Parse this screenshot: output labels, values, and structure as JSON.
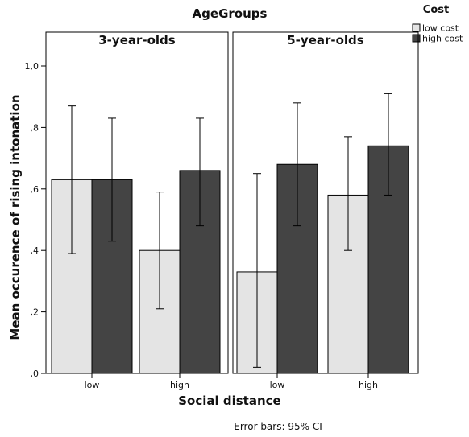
{
  "chart_data": {
    "type": "bar",
    "title": "AgeGroups",
    "panels": [
      {
        "name": "3-year-olds",
        "categories": [
          "low",
          "high"
        ],
        "series": [
          {
            "name": "low cost",
            "values": [
              0.63,
              0.4
            ],
            "ci_low": [
              0.39,
              0.21
            ],
            "ci_high": [
              0.87,
              0.59
            ]
          },
          {
            "name": "high cost",
            "values": [
              0.63,
              0.66
            ],
            "ci_low": [
              0.43,
              0.48
            ],
            "ci_high": [
              0.83,
              0.83
            ]
          }
        ]
      },
      {
        "name": "5-year-olds",
        "categories": [
          "low",
          "high"
        ],
        "series": [
          {
            "name": "low cost",
            "values": [
              0.33,
              0.58
            ],
            "ci_low": [
              0.02,
              0.4
            ],
            "ci_high": [
              0.65,
              0.77
            ]
          },
          {
            "name": "high cost",
            "values": [
              0.68,
              0.74
            ],
            "ci_low": [
              0.48,
              0.58
            ],
            "ci_high": [
              0.88,
              0.91
            ]
          }
        ]
      }
    ],
    "xlabel": "Social distance",
    "ylabel": "Mean occurence of rising intonation",
    "ylim": [
      0,
      1
    ],
    "yticks": [
      0,
      0.2,
      0.4,
      0.6,
      0.8,
      1.0
    ],
    "ytick_labels": [
      ",0",
      ",2",
      ",4",
      ",6",
      ",8",
      "1,0"
    ],
    "legend": {
      "title": "Cost",
      "placement": "top-right",
      "items": [
        "low cost",
        "high cost"
      ]
    },
    "colors": {
      "low cost": "#e4e4e4",
      "high cost": "#444444"
    },
    "grid": false,
    "footnote": "Error bars: 95% CI"
  }
}
